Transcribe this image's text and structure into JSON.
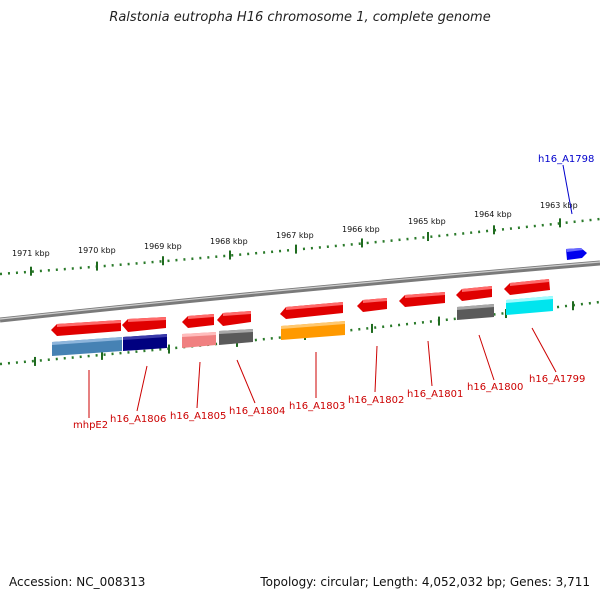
{
  "title": "Ralstonia eutropha H16 chromosome 1, complete genome",
  "footer": {
    "accession": "Accession: NC_008313",
    "topology": "Topology: circular; Length: 4,052,032 bp; Genes: 3,711"
  },
  "ruler": {
    "ticks": [
      "1971 kbp",
      "1970 kbp",
      "1969 kbp",
      "1968 kbp",
      "1967 kbp",
      "1966 kbp",
      "1965 kbp",
      "1964 kbp",
      "1963 kbp"
    ]
  },
  "genes": {
    "forward": [
      "h16_A1798"
    ],
    "reverse": [
      "mhpE2",
      "h16_A1806",
      "h16_A1805",
      "h16_A1804",
      "h16_A1803",
      "h16_A1802",
      "h16_A1801",
      "h16_A1800",
      "h16_A1799"
    ]
  },
  "colors": {
    "gene": "#ff0000",
    "gene_label": "#cc0000",
    "forward_gene": "#0000ff",
    "forward_label": "#0000cc",
    "backbone": "#888888",
    "ruler": "#006600",
    "steelblue": "#4682b4",
    "navy": "#000080",
    "salmon": "#f08080",
    "grey": "#666666",
    "orange": "#ff9900",
    "cyan": "#00ffff"
  }
}
